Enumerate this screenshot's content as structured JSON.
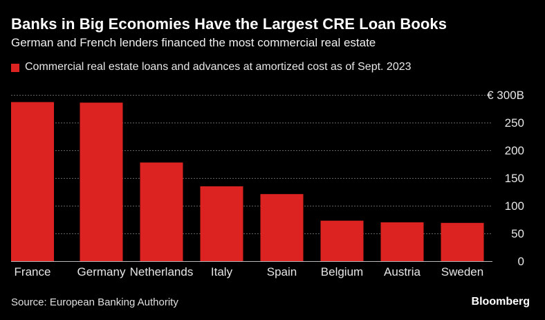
{
  "header": {
    "title": "Banks in Big Economies Have the Largest CRE Loan Books",
    "subtitle": "German and French lenders financed the most commercial real estate"
  },
  "footer": {
    "source": "Source: European Banking Authority",
    "brand": "Bloomberg"
  },
  "colors": {
    "bar": "#dd2321",
    "gridline": "#666666",
    "axis": "#bbbbbb",
    "text": "#ffffff"
  },
  "chart_data": {
    "type": "bar",
    "title": "Banks in Big Economies Have the Largest CRE Loan Books",
    "subtitle": "German and French lenders financed the most commercial real estate",
    "categories": [
      "France",
      "Germany",
      "Netherlands",
      "Italy",
      "Spain",
      "Belgium",
      "Austria",
      "Sweden"
    ],
    "series": [
      {
        "name": "Commercial real estate loans and advances at amortized cost as of Sept. 2023",
        "values": [
          287,
          286,
          178,
          135,
          121,
          73,
          70,
          69
        ]
      }
    ],
    "ylim": [
      0,
      300
    ],
    "yticks": [
      0,
      50,
      100,
      150,
      200,
      250,
      300
    ],
    "ytick_labels": [
      "0",
      "50",
      "100",
      "150",
      "200",
      "250",
      "€ 300B"
    ],
    "y_axis_position": "right",
    "grid": true,
    "legend_position": "top-left"
  }
}
